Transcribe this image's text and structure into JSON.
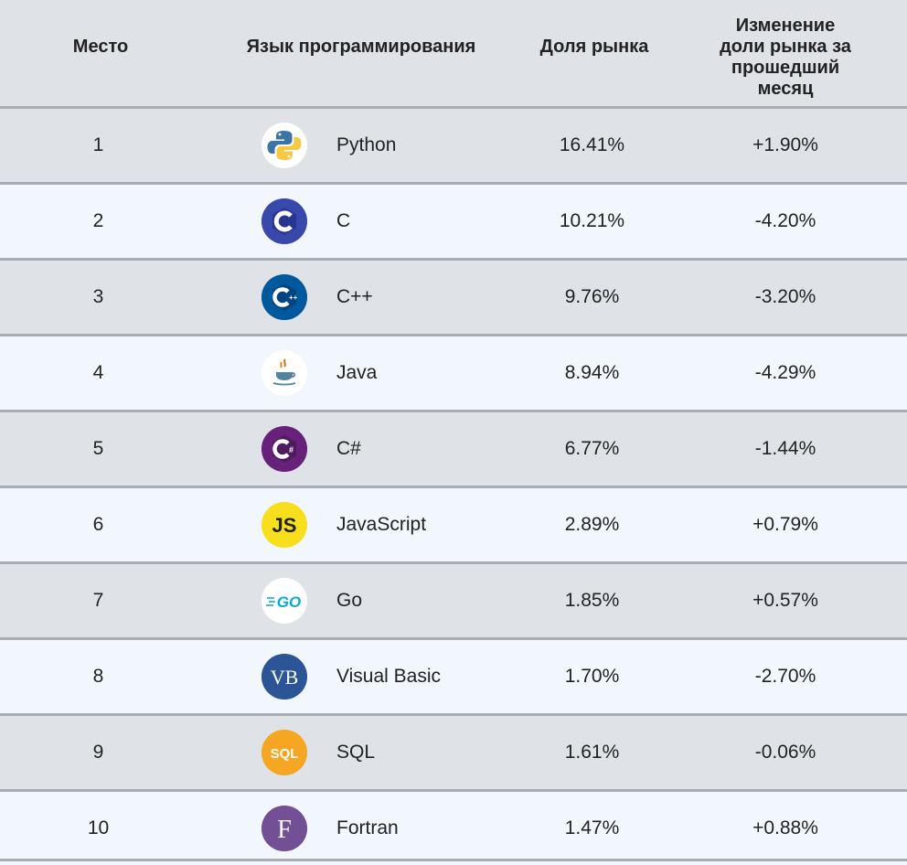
{
  "headers": {
    "rank": "Место",
    "language": "Язык программирования",
    "share": "Доля рынка",
    "change_line1": "Изменение",
    "change_line2": "доли рынка за",
    "change_line3": "прошедший",
    "change_line4": "месяц"
  },
  "rows": [
    {
      "rank": "1",
      "name": "Python",
      "share": "16.41%",
      "change": "+1.90%",
      "icon": "python-logo-icon"
    },
    {
      "rank": "2",
      "name": "C",
      "share": "10.21%",
      "change": "-4.20%",
      "icon": "c-logo-icon"
    },
    {
      "rank": "3",
      "name": "C++",
      "share": "9.76%",
      "change": "-3.20%",
      "icon": "cpp-logo-icon"
    },
    {
      "rank": "4",
      "name": "Java",
      "share": "8.94%",
      "change": "-4.29%",
      "icon": "java-logo-icon"
    },
    {
      "rank": "5",
      "name": "C#",
      "share": "6.77%",
      "change": "-1.44%",
      "icon": "csharp-logo-icon"
    },
    {
      "rank": "6",
      "name": "JavaScript",
      "share": "2.89%",
      "change": "+0.79%",
      "icon": "javascript-logo-icon",
      "icon_text": "JS"
    },
    {
      "rank": "7",
      "name": "Go",
      "share": "1.85%",
      "change": "+0.57%",
      "icon": "go-logo-icon",
      "icon_text": "GO"
    },
    {
      "rank": "8",
      "name": "Visual Basic",
      "share": "1.70%",
      "change": "-2.70%",
      "icon": "visual-basic-logo-icon",
      "icon_text": "VB"
    },
    {
      "rank": "9",
      "name": "SQL",
      "share": "1.61%",
      "change": "-0.06%",
      "icon": "sql-logo-icon",
      "icon_text": "SQL"
    },
    {
      "rank": "10",
      "name": "Fortran",
      "share": "1.47%",
      "change": "+0.88%",
      "icon": "fortran-logo-icon",
      "icon_text": "F"
    }
  ],
  "colors": {
    "header_bg": "#dfe3e8",
    "row_odd_bg": "#dfe3e8",
    "row_even_bg": "#f2f7fd",
    "divider": "#a9adb3",
    "c_blue": "#3949ab",
    "cpp_blue": "#00599c",
    "csharp_purple": "#68217a",
    "js_yellow": "#f7df1e",
    "go_cyan": "#00acd7",
    "vb_navy": "#2b5597",
    "sql_orange": "#f5a623",
    "fortran_purple": "#734f96"
  }
}
